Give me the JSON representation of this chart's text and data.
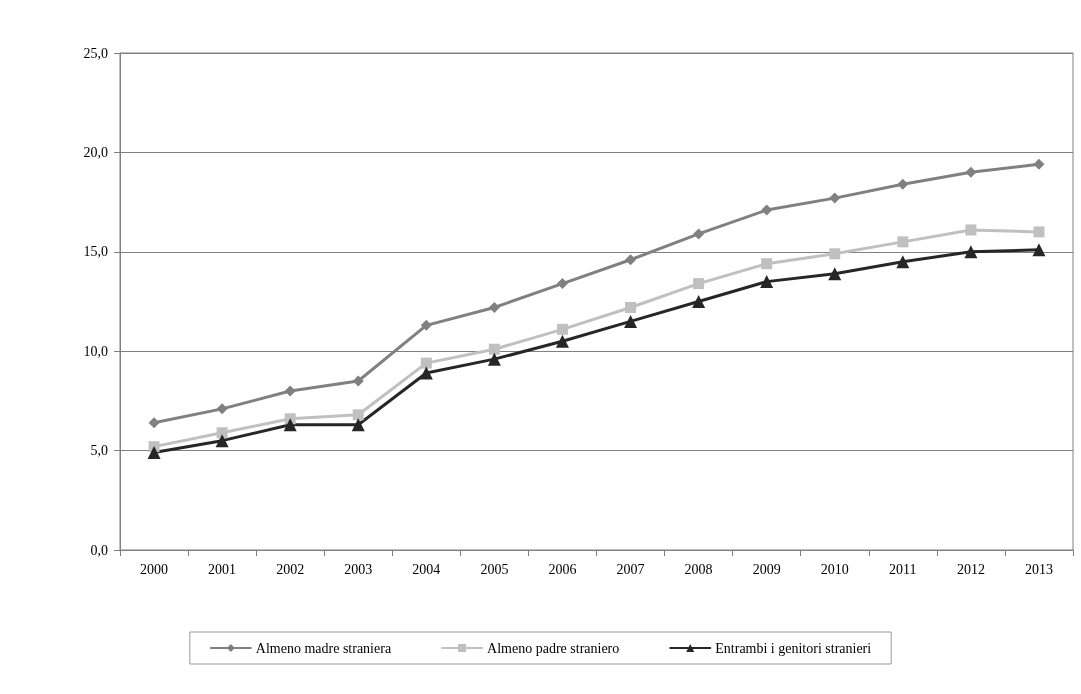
{
  "chart_data": {
    "type": "line",
    "categories": [
      "2000",
      "2001",
      "2002",
      "2003",
      "2004",
      "2005",
      "2006",
      "2007",
      "2008",
      "2009",
      "2010",
      "2011",
      "2012",
      "2013"
    ],
    "series": [
      {
        "name": "Almeno madre straniera",
        "color": "#808080",
        "marker": "diamond",
        "values": [
          6.4,
          7.1,
          8.0,
          8.5,
          11.3,
          12.2,
          13.4,
          14.6,
          15.9,
          17.1,
          17.7,
          18.4,
          19.0,
          19.4
        ]
      },
      {
        "name": "Almeno padre straniero",
        "color": "#c0c0c0",
        "marker": "square",
        "values": [
          5.2,
          5.9,
          6.6,
          6.8,
          9.4,
          10.1,
          11.1,
          12.2,
          13.4,
          14.4,
          14.9,
          15.5,
          16.1,
          16.0
        ]
      },
      {
        "name": "Entrambi i genitori stranieri",
        "color": "#262626",
        "marker": "triangle",
        "values": [
          4.9,
          5.5,
          6.3,
          6.3,
          8.9,
          9.6,
          10.5,
          11.5,
          12.5,
          13.5,
          13.9,
          14.5,
          15.0,
          15.1
        ]
      }
    ],
    "ylim": [
      0,
      25
    ],
    "yticks": [
      {
        "value": 0,
        "label": "0,0"
      },
      {
        "value": 5,
        "label": "5,0"
      },
      {
        "value": 10,
        "label": "10,0"
      },
      {
        "value": 15,
        "label": "15,0"
      },
      {
        "value": 20,
        "label": "20,0"
      },
      {
        "value": 25,
        "label": "25,0"
      }
    ],
    "grid": "y",
    "legend": "bottom",
    "line_style": "solid"
  }
}
